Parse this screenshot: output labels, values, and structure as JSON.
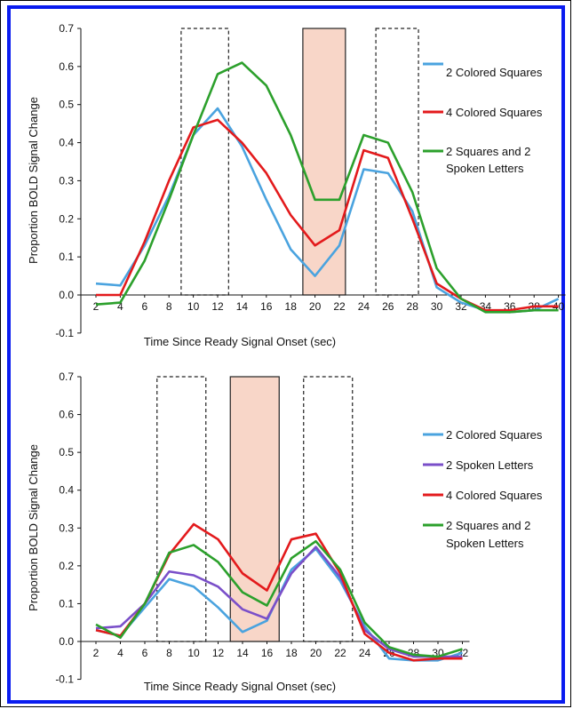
{
  "chart_data": [
    {
      "type": "line",
      "xlabel": "Time Since Ready Signal Onset (sec)",
      "ylabel": "Proportion BOLD Signal Change",
      "ylim": [
        -0.1,
        0.7
      ],
      "yticks": [
        "0.7",
        "0.6",
        "0.5",
        "0.4",
        "0.3",
        "0.2",
        "0.1",
        "0.0",
        "-0.1"
      ],
      "x": [
        2,
        4,
        6,
        8,
        10,
        12,
        14,
        16,
        18,
        20,
        22,
        24,
        26,
        28,
        30,
        32,
        34,
        36,
        38,
        40
      ],
      "xticks": [
        "2",
        "4",
        "6",
        "8",
        "10",
        "12",
        "14",
        "16",
        "18",
        "20",
        "22",
        "24",
        "26",
        "28",
        "30",
        "32",
        "34",
        "36",
        "38",
        "40"
      ],
      "series": [
        {
          "name": "2 Colored Squares",
          "color": "#4aa3df",
          "values": [
            0.03,
            0.025,
            0.13,
            0.26,
            0.42,
            0.49,
            0.39,
            0.25,
            0.12,
            0.05,
            0.13,
            0.33,
            0.32,
            0.22,
            0.02,
            -0.02,
            -0.04,
            -0.045,
            -0.04,
            -0.01
          ]
        },
        {
          "name": "4 Colored Squares",
          "color": "#e31a1c",
          "values": [
            0.0,
            0.0,
            0.14,
            0.3,
            0.44,
            0.46,
            0.4,
            0.32,
            0.21,
            0.13,
            0.17,
            0.38,
            0.36,
            0.2,
            0.03,
            -0.01,
            -0.04,
            -0.04,
            -0.03,
            -0.03
          ]
        },
        {
          "name": "2 Squares and 2 Spoken Letters",
          "color": "#2ca02c",
          "values": [
            -0.025,
            -0.02,
            0.09,
            0.25,
            0.42,
            0.58,
            0.61,
            0.55,
            0.42,
            0.25,
            0.25,
            0.42,
            0.4,
            0.27,
            0.07,
            -0.01,
            -0.045,
            -0.045,
            -0.04,
            -0.04
          ]
        }
      ],
      "shaded_interval": [
        19,
        22.5
      ],
      "dashed_intervals": [
        [
          9,
          12.9
        ],
        [
          25,
          28.5
        ]
      ]
    },
    {
      "type": "line",
      "xlabel": "Time Since Ready Signal Onset (sec)",
      "ylabel": "Proportion BOLD Signal Change",
      "ylim": [
        -0.1,
        0.7
      ],
      "yticks": [
        "0.7",
        "0.6",
        "0.5",
        "0.4",
        "0.3",
        "0.2",
        "0.1",
        "0.0",
        "-0.1"
      ],
      "x": [
        2,
        4,
        6,
        8,
        10,
        12,
        14,
        16,
        18,
        20,
        22,
        24,
        26,
        28,
        30,
        32
      ],
      "xticks": [
        "2",
        "4",
        "6",
        "8",
        "10",
        "12",
        "14",
        "16",
        "18",
        "20",
        "22",
        "24",
        "26",
        "28",
        "30",
        "32"
      ],
      "series": [
        {
          "name": "2 Colored Squares",
          "color": "#4aa3df",
          "values": [
            0.03,
            0.015,
            0.09,
            0.165,
            0.145,
            0.09,
            0.025,
            0.055,
            0.19,
            0.245,
            0.16,
            0.04,
            -0.045,
            -0.05,
            -0.05,
            -0.03
          ]
        },
        {
          "name": "2 Spoken Letters",
          "color": "#7a4fc9",
          "values": [
            0.035,
            0.04,
            0.1,
            0.185,
            0.175,
            0.145,
            0.085,
            0.06,
            0.18,
            0.25,
            0.17,
            0.03,
            -0.02,
            -0.04,
            -0.04,
            -0.04
          ]
        },
        {
          "name": "4 Colored Squares",
          "color": "#e31a1c",
          "values": [
            0.03,
            0.015,
            0.1,
            0.23,
            0.31,
            0.27,
            0.18,
            0.135,
            0.27,
            0.285,
            0.18,
            0.02,
            -0.03,
            -0.05,
            -0.045,
            -0.045
          ]
        },
        {
          "name": "2 Squares and 2 Spoken Letters",
          "color": "#2ca02c",
          "values": [
            0.045,
            0.01,
            0.1,
            0.235,
            0.255,
            0.21,
            0.13,
            0.095,
            0.22,
            0.265,
            0.19,
            0.05,
            -0.015,
            -0.035,
            -0.04,
            -0.02
          ]
        }
      ],
      "shaded_interval": [
        13,
        17
      ],
      "dashed_intervals": [
        [
          7,
          11
        ],
        [
          19,
          23
        ]
      ]
    }
  ],
  "legend_lines": {
    "chart1": [
      "2 Colored Squares",
      "4 Colored Squares",
      "2 Squares and 2",
      "Spoken Letters"
    ],
    "chart2": [
      "2 Colored Squares",
      "2 Spoken Letters",
      "4 Colored Squares",
      "2 Squares and 2",
      "Spoken Letters"
    ]
  }
}
